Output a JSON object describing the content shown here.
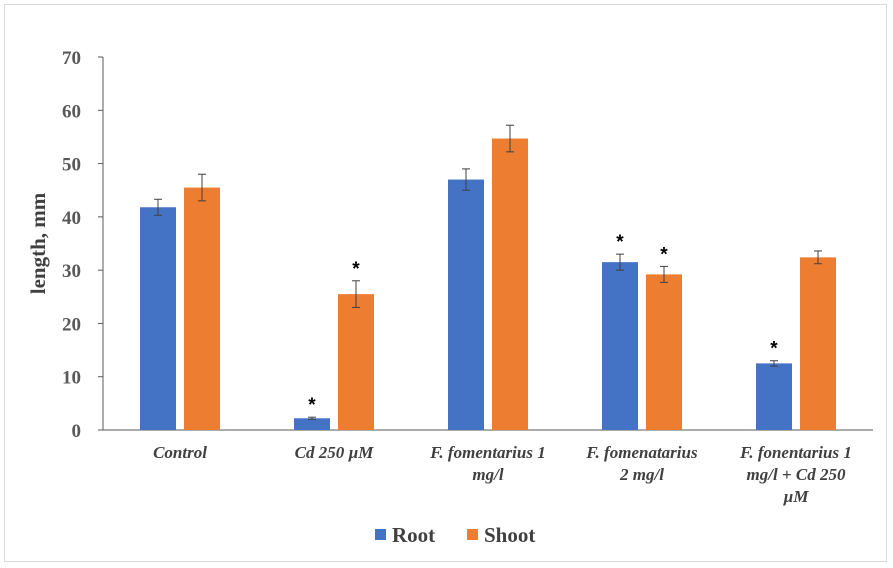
{
  "chart_data": {
    "type": "bar",
    "categories": [
      [
        "Control"
      ],
      [
        "Cd 250 µM"
      ],
      [
        "F. fomentarius 1",
        "mg/l"
      ],
      [
        "F. fomenatarius",
        "2 mg/l"
      ],
      [
        "F. fonentarius 1",
        "mg/l + Cd 250",
        "µM"
      ]
    ],
    "series": [
      {
        "name": "Root",
        "color": "#4472c4",
        "values": [
          41.8,
          2.2,
          47.0,
          31.5,
          12.5
        ],
        "errors": [
          1.5,
          0.2,
          2.0,
          1.5,
          0.5
        ],
        "significance": [
          "",
          "*",
          "",
          "*",
          "*"
        ]
      },
      {
        "name": "Shoot",
        "color": "#ed7d31",
        "values": [
          45.5,
          25.5,
          54.7,
          29.2,
          32.4
        ],
        "errors": [
          2.5,
          2.5,
          2.5,
          1.5,
          1.2
        ],
        "significance": [
          "",
          "*",
          "",
          "*",
          ""
        ]
      }
    ],
    "ylabel": "length, mm",
    "xlabel": "",
    "ylim": [
      0,
      70
    ],
    "yticks": [
      "0",
      "10",
      "20",
      "30",
      "40",
      "50",
      "60",
      "70"
    ],
    "grid": false,
    "legend_position": "bottom"
  }
}
